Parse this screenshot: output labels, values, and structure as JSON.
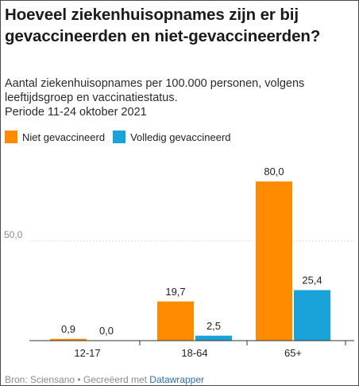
{
  "header": {
    "title": "Hoeveel ziekenhuisopnames zijn er bij gevaccineerden en niet-gevaccineerden?",
    "subtitle_line1": "Aantal ziekenhuisopnames per 100.000 personen, volgens leeftijdsgroep en vaccinatiestatus.",
    "subtitle_line2": "Periode 11-24 oktober 2021"
  },
  "footer": {
    "source_prefix": "Bron: Sciensano • Gecreëerd met ",
    "link_label": "Datawrapper"
  },
  "colors": {
    "not_vaccinated": "#ff8c00",
    "fully_vaccinated": "#1aa3d9"
  },
  "chart_data": {
    "type": "bar",
    "categories": [
      "12-17",
      "18-64",
      "65+"
    ],
    "series": [
      {
        "name": "Niet gevaccineerd",
        "values": [
          0.9,
          19.7,
          80.0
        ],
        "labels": [
          "0,9",
          "19,7",
          "80,0"
        ]
      },
      {
        "name": "Volledig gevaccineerd",
        "values": [
          0.0,
          2.5,
          25.4
        ],
        "labels": [
          "0,0",
          "2,5",
          "25,4"
        ]
      }
    ],
    "y_gridline": 50,
    "y_gridline_label": "50,0",
    "ylim": [
      0,
      80
    ],
    "legend_position": "top-left"
  }
}
